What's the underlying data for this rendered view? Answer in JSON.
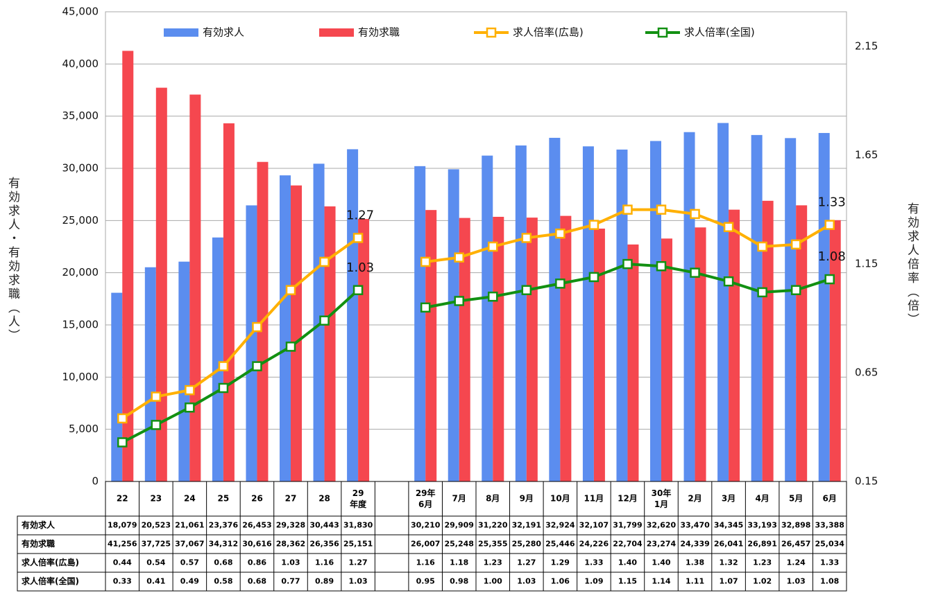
{
  "chart_data": {
    "type": "combo",
    "y_label": "有効求人・有効求職（人）",
    "y2_label": "有効求人倍率（倍）",
    "categories": [
      "22",
      "23",
      "24",
      "25",
      "26",
      "27",
      "28",
      "29\n年度",
      null,
      "29年\n6月",
      "7月",
      "8月",
      "9月",
      "10月",
      "11月",
      "12月",
      "30年\n1月",
      "2月",
      "3月",
      "4月",
      "5月",
      "6月"
    ],
    "series": [
      {
        "name": "有効求人",
        "type": "bar",
        "color": "#5b8def",
        "values": [
          18079,
          20523,
          21061,
          23376,
          26453,
          29328,
          30443,
          31830,
          null,
          30210,
          29909,
          31220,
          32191,
          32924,
          32107,
          31799,
          32620,
          33470,
          34345,
          33193,
          32898,
          33388
        ],
        "value_labels": [
          "18,079",
          "20,523",
          "21,061",
          "23,376",
          "26,453",
          "29,328",
          "30,443",
          "31,830",
          null,
          "30,210",
          "29,909",
          "31,220",
          "32,191",
          "32,924",
          "32,107",
          "31,799",
          "32,620",
          "33,470",
          "34,345",
          "33,193",
          "32,898",
          "33,388"
        ]
      },
      {
        "name": "有効求職",
        "type": "bar",
        "color": "#f5474f",
        "values": [
          41256,
          37725,
          37067,
          34312,
          30616,
          28362,
          26356,
          25151,
          null,
          26007,
          25248,
          25355,
          25280,
          25446,
          24226,
          22704,
          23274,
          24339,
          26041,
          26891,
          26457,
          25034
        ],
        "value_labels": [
          "41,256",
          "37,725",
          "37,067",
          "34,312",
          "30,616",
          "28,362",
          "26,356",
          "25,151",
          null,
          "26,007",
          "25,248",
          "25,355",
          "25,280",
          "25,446",
          "24,226",
          "22,704",
          "23,274",
          "24,339",
          "26,041",
          "26,891",
          "26,457",
          "25,034"
        ]
      },
      {
        "name": "求人倍率(広島)",
        "type": "line",
        "axis": "y2",
        "color": "#ffb000",
        "label_points": [
          7,
          21
        ],
        "values": [
          0.44,
          0.54,
          0.57,
          0.68,
          0.86,
          1.03,
          1.16,
          1.27,
          null,
          1.16,
          1.18,
          1.23,
          1.27,
          1.29,
          1.33,
          1.4,
          1.4,
          1.38,
          1.32,
          1.23,
          1.24,
          1.33
        ],
        "value_labels": [
          "0.44",
          "0.54",
          "0.57",
          "0.68",
          "0.86",
          "1.03",
          "1.16",
          "1.27",
          null,
          "1.16",
          "1.18",
          "1.23",
          "1.27",
          "1.29",
          "1.33",
          "1.40",
          "1.40",
          "1.38",
          "1.32",
          "1.23",
          "1.24",
          "1.33"
        ]
      },
      {
        "name": "求人倍率(全国)",
        "type": "line",
        "axis": "y2",
        "color": "#129012",
        "label_points": [
          7,
          21
        ],
        "values": [
          0.33,
          0.41,
          0.49,
          0.58,
          0.68,
          0.77,
          0.89,
          1.03,
          null,
          0.95,
          0.98,
          1.0,
          1.03,
          1.06,
          1.09,
          1.15,
          1.14,
          1.11,
          1.07,
          1.02,
          1.03,
          1.08
        ],
        "value_labels": [
          "0.33",
          "0.41",
          "0.49",
          "0.58",
          "0.68",
          "0.77",
          "0.89",
          "1.03",
          null,
          "0.95",
          "0.98",
          "1.00",
          "1.03",
          "1.06",
          "1.09",
          "1.15",
          "1.14",
          "1.11",
          "1.07",
          "1.02",
          "1.03",
          "1.08"
        ]
      }
    ],
    "ylim": [
      0,
      45000
    ],
    "yticks": [
      0,
      {
        "value": 5000,
        "label": "5,000"
      },
      {
        "value": 10000,
        "label": "10,000"
      },
      {
        "value": 15000,
        "label": "15,000"
      },
      {
        "value": 20000,
        "label": "20,000"
      },
      {
        "value": 25000,
        "label": "25,000"
      },
      {
        "value": 30000,
        "label": "30,000"
      },
      {
        "value": 35000,
        "label": "35,000"
      },
      {
        "value": 40000,
        "label": "40,000"
      },
      {
        "value": 45000,
        "label": "45,000"
      }
    ],
    "y2lim": [
      0.15,
      2.31
    ],
    "y2ticks": [
      0.15,
      0.65,
      1.15,
      1.65,
      2.15
    ],
    "grid": true,
    "legend": "top"
  }
}
